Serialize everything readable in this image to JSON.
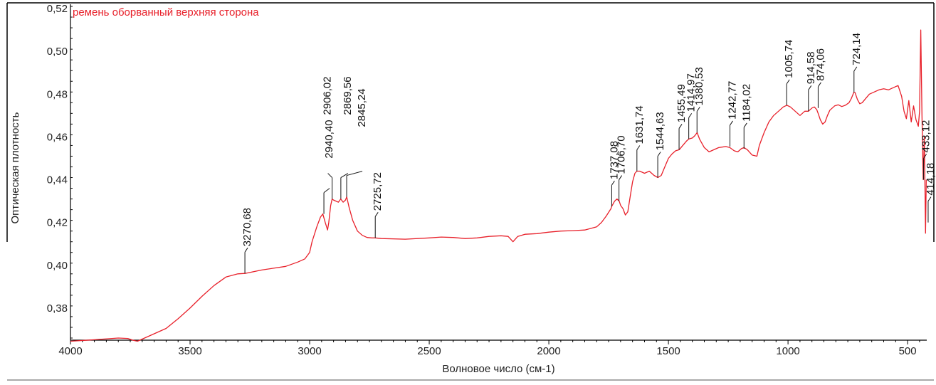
{
  "chart_data": {
    "type": "line",
    "title": "ремень оборванный верхняя сторона",
    "xlabel": "Волновое число (см-1)",
    "ylabel": "Оптическая плотность",
    "xlim": [
      4000,
      420
    ],
    "ylim": [
      0.365,
      0.522
    ],
    "x_ticks": [
      4000,
      3500,
      3000,
      2500,
      2000,
      1500,
      1000,
      500
    ],
    "x_tick_labels": [
      "4000",
      "3500",
      "3000",
      "2500",
      "2000",
      "1500",
      "1000",
      "500"
    ],
    "y_ticks": [
      0.38,
      0.4,
      0.42,
      0.44,
      0.46,
      0.48,
      0.5,
      0.52
    ],
    "y_tick_labels": [
      "0,38",
      "0,40",
      "0,42",
      "0,44",
      "0,46",
      "0,48",
      "0,50",
      "0,52"
    ],
    "grid": false,
    "series": [
      {
        "name": "ремень оборванный верхняя сторона",
        "color": "#e8202a",
        "x": [
          4000,
          3900,
          3800,
          3760,
          3740,
          3720,
          3700,
          3650,
          3600,
          3550,
          3500,
          3450,
          3400,
          3350,
          3300,
          3270,
          3200,
          3100,
          3050,
          3020,
          3000,
          2990,
          2970,
          2955,
          2945,
          2935,
          2925,
          2920,
          2912,
          2906,
          2900,
          2890,
          2880,
          2870,
          2860,
          2850,
          2845,
          2835,
          2820,
          2800,
          2780,
          2760,
          2740,
          2725,
          2700,
          2600,
          2500,
          2450,
          2400,
          2350,
          2300,
          2250,
          2200,
          2170,
          2150,
          2130,
          2100,
          2050,
          2000,
          1950,
          1900,
          1850,
          1800,
          1780,
          1760,
          1740,
          1737,
          1725,
          1715,
          1706,
          1700,
          1690,
          1680,
          1670,
          1660,
          1650,
          1640,
          1632,
          1620,
          1600,
          1580,
          1560,
          1544,
          1530,
          1515,
          1500,
          1485,
          1470,
          1455,
          1440,
          1425,
          1415,
          1400,
          1390,
          1380,
          1370,
          1350,
          1330,
          1310,
          1290,
          1260,
          1243,
          1225,
          1210,
          1195,
          1184,
          1170,
          1150,
          1130,
          1120,
          1100,
          1080,
          1060,
          1040,
          1020,
          1005,
          990,
          970,
          950,
          930,
          915,
          900,
          890,
          880,
          874,
          865,
          855,
          845,
          835,
          825,
          815,
          805,
          790,
          775,
          760,
          745,
          735,
          725,
          720,
          710,
          700,
          690,
          675,
          660,
          640,
          620,
          600,
          580,
          560,
          540,
          525,
          515,
          505,
          495,
          485,
          475,
          465,
          455,
          450,
          445,
          440,
          435,
          430,
          425,
          422
        ],
        "values": [
          0.3645,
          0.3652,
          0.366,
          0.3658,
          0.365,
          0.3645,
          0.3655,
          0.368,
          0.3705,
          0.375,
          0.38,
          0.3855,
          0.3905,
          0.3945,
          0.396,
          0.3962,
          0.3978,
          0.3995,
          0.4015,
          0.403,
          0.406,
          0.411,
          0.418,
          0.4225,
          0.424,
          0.42,
          0.4165,
          0.42,
          0.428,
          0.431,
          0.4305,
          0.43,
          0.4295,
          0.431,
          0.4295,
          0.4305,
          0.432,
          0.427,
          0.421,
          0.416,
          0.414,
          0.413,
          0.4128,
          0.4128,
          0.4125,
          0.4122,
          0.4128,
          0.4132,
          0.413,
          0.4125,
          0.4128,
          0.4135,
          0.4138,
          0.4135,
          0.411,
          0.4135,
          0.4145,
          0.4148,
          0.4155,
          0.416,
          0.4162,
          0.4165,
          0.418,
          0.42,
          0.423,
          0.4265,
          0.4275,
          0.43,
          0.431,
          0.43,
          0.428,
          0.4265,
          0.4235,
          0.425,
          0.432,
          0.439,
          0.443,
          0.444,
          0.444,
          0.443,
          0.444,
          0.442,
          0.441,
          0.442,
          0.446,
          0.45,
          0.452,
          0.4535,
          0.454,
          0.456,
          0.458,
          0.459,
          0.4595,
          0.4605,
          0.462,
          0.459,
          0.455,
          0.453,
          0.454,
          0.455,
          0.4555,
          0.455,
          0.4535,
          0.453,
          0.4545,
          0.455,
          0.454,
          0.4515,
          0.451,
          0.456,
          0.462,
          0.467,
          0.47,
          0.472,
          0.474,
          0.4748,
          0.474,
          0.472,
          0.47,
          0.472,
          0.472,
          0.4735,
          0.474,
          0.4728,
          0.471,
          0.468,
          0.466,
          0.467,
          0.47,
          0.4725,
          0.4735,
          0.4745,
          0.475,
          0.4742,
          0.4748,
          0.476,
          0.478,
          0.4808,
          0.4808,
          0.4775,
          0.4755,
          0.476,
          0.478,
          0.48,
          0.481,
          0.482,
          0.4825,
          0.482,
          0.483,
          0.484,
          0.479,
          0.472,
          0.4685,
          0.477,
          0.467,
          0.4745,
          0.468,
          0.465,
          0.472,
          0.51,
          0.47,
          0.44,
          0.46,
          0.415,
          0.44
        ]
      }
    ],
    "annotations": [
      {
        "label": "3270,68",
        "x": 3270.68,
        "y": 0.3962
      },
      {
        "label": "2940,40",
        "x": 2940.4,
        "y": 0.424
      },
      {
        "label": "2906,02",
        "x": 2906.02,
        "y": 0.431
      },
      {
        "label": "2869,56",
        "x": 2869.56,
        "y": 0.431
      },
      {
        "label": "2845,24",
        "x": 2845.24,
        "y": 0.432
      },
      {
        "label": "2725,72",
        "x": 2725.72,
        "y": 0.4128
      },
      {
        "label": "1737,08",
        "x": 1737.08,
        "y": 0.4275
      },
      {
        "label": "1706,70",
        "x": 1706.7,
        "y": 0.43
      },
      {
        "label": "1631,74",
        "x": 1631.74,
        "y": 0.444
      },
      {
        "label": "1544,63",
        "x": 1544.63,
        "y": 0.441
      },
      {
        "label": "1455,49",
        "x": 1455.49,
        "y": 0.454
      },
      {
        "label": "1414,97",
        "x": 1414.97,
        "y": 0.459
      },
      {
        "label": "1380,53",
        "x": 1380.53,
        "y": 0.462
      },
      {
        "label": "1242,77",
        "x": 1242.77,
        "y": 0.4555
      },
      {
        "label": "1184,02",
        "x": 1184.02,
        "y": 0.4545
      },
      {
        "label": "1005,74",
        "x": 1005.74,
        "y": 0.4748
      },
      {
        "label": "914,58",
        "x": 914.58,
        "y": 0.472
      },
      {
        "label": "874,06",
        "x": 874.06,
        "y": 0.4735
      },
      {
        "label": "724,14",
        "x": 724.14,
        "y": 0.4808
      },
      {
        "label": "433,12",
        "x": 433.12,
        "y": 0.44
      },
      {
        "label": "414,18",
        "x": 414.18,
        "y": 0.42
      }
    ]
  }
}
